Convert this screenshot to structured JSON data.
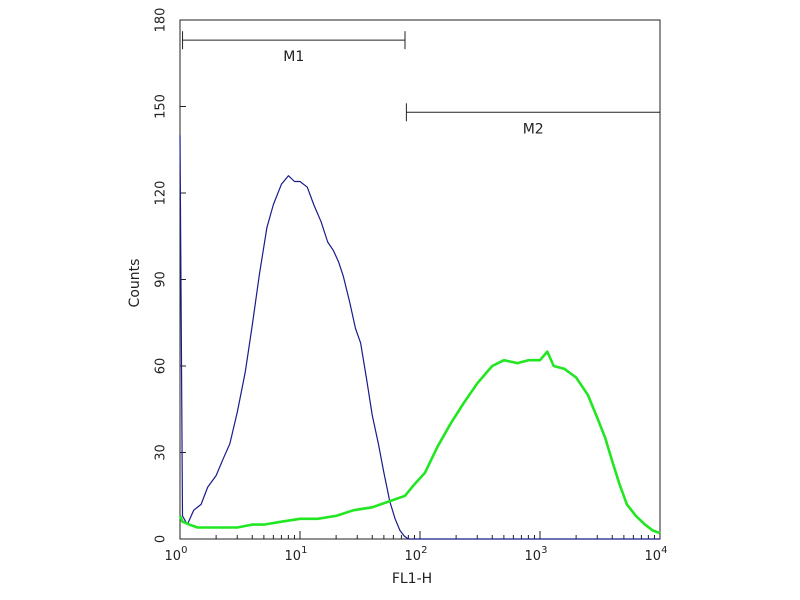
{
  "chart_data": {
    "type": "line",
    "title": "",
    "xlabel": "FL1-H",
    "ylabel": "Counts",
    "x_scale": "log",
    "xlim": [
      1,
      10000
    ],
    "ylim": [
      0,
      180
    ],
    "x_ticks": [
      {
        "value": 1,
        "base": "10",
        "exp": "0"
      },
      {
        "value": 10,
        "base": "10",
        "exp": "1"
      },
      {
        "value": 100,
        "base": "10",
        "exp": "2"
      },
      {
        "value": 1000,
        "base": "10",
        "exp": "3"
      },
      {
        "value": 10000,
        "base": "10",
        "exp": "4"
      }
    ],
    "y_ticks": [
      "0",
      "30",
      "60",
      "90",
      "120",
      "150",
      "180"
    ],
    "grid": false,
    "gates": [
      {
        "label": "M1",
        "x_start": 1.05,
        "x_end": 75,
        "y": 173
      },
      {
        "label": "M2",
        "x_start": 77,
        "x_end": 10000,
        "y": 148
      }
    ],
    "series": [
      {
        "color": "#1a1a8c",
        "x": [
          1,
          1.05,
          1.15,
          1.3,
          1.5,
          1.7,
          2.0,
          2.3,
          2.6,
          3.0,
          3.5,
          4.0,
          4.6,
          5.3,
          6.0,
          7.0,
          8.0,
          9.0,
          10.0,
          11.5,
          13,
          15,
          17,
          19,
          21,
          23,
          26,
          29,
          32,
          36,
          40,
          45,
          50,
          56,
          62,
          68,
          74,
          80,
          90,
          100,
          10000
        ],
        "y": [
          140,
          8,
          5,
          10,
          12,
          18,
          22,
          28,
          33,
          44,
          58,
          74,
          92,
          108,
          116,
          123,
          126,
          124,
          124,
          122,
          116,
          110,
          103,
          100,
          96,
          91,
          82,
          73,
          68,
          55,
          43,
          33,
          23,
          13,
          7,
          3,
          1,
          0,
          0,
          0,
          0
        ]
      },
      {
        "color": "#22e622",
        "x": [
          1,
          1.05,
          1.2,
          1.4,
          1.7,
          2,
          2.5,
          3,
          4,
          5,
          7,
          10,
          14,
          20,
          28,
          40,
          55,
          75,
          90,
          110,
          140,
          180,
          230,
          300,
          400,
          500,
          650,
          800,
          1000,
          1150,
          1300,
          1600,
          2000,
          2500,
          3000,
          3500,
          4000,
          4600,
          5300,
          6300,
          7500,
          8700,
          10000
        ],
        "y": [
          8,
          6,
          5,
          4,
          4,
          4,
          4,
          4,
          5,
          5,
          6,
          7,
          7,
          8,
          10,
          11,
          13,
          15,
          19,
          23,
          32,
          40,
          47,
          54,
          60,
          62,
          61,
          62,
          62,
          65,
          60,
          59,
          56,
          50,
          42,
          35,
          27,
          19,
          12,
          8,
          5,
          3,
          2
        ]
      }
    ]
  }
}
